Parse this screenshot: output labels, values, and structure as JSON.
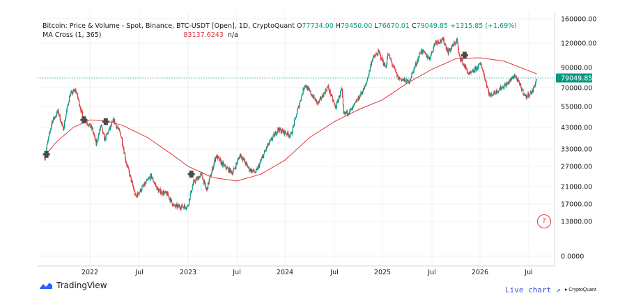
{
  "legend": {
    "title": "Bitcoin: Price & Volume - Spot, Binance, BTC-USDT [Open], 1D, CryptoQuant",
    "o_label": "O",
    "o_value": "77734.00",
    "h_label": "H",
    "h_value": "79450.00",
    "l_label": "L",
    "l_value": "76670.01",
    "c_label": "C",
    "c_value": "79049.85",
    "change": "+1315.85 (+1.69%)",
    "ma_name": "MA Cross (1, 365)",
    "ma_value": "83137.6243",
    "ma_extra": "n/a"
  },
  "branding": {
    "tradingview": "TradingView",
    "live_chart": "Live chart ↗",
    "cryptoquant": "CryptoQuant",
    "help": "?"
  },
  "colors": {
    "up": "#089981",
    "down": "#e0353b",
    "ma": "#e0353b",
    "last_price_bg": "#089981",
    "grid": "#eef0f3"
  },
  "chart_data": {
    "type": "line",
    "y_scale": "log",
    "y_ticks": [
      "160000.00",
      "120000.00",
      "90000.00",
      "70000.00",
      "55000.00",
      "43000.00",
      "33000.00",
      "27000.00",
      "21000.00",
      "17000.00",
      "13800.00",
      "0.0000"
    ],
    "x_ticks": [
      "2022",
      "Jul",
      "2023",
      "Jul",
      "2024",
      "Jul",
      "2025",
      "Jul",
      "2026",
      "Jul"
    ],
    "last_price": "79049.85",
    "series": [
      {
        "name": "Bitcoin: Price & Volume - Spot, Binance, BTC-USDT [Open]",
        "values": [
          [
            "2021-07-20",
            30000
          ],
          [
            "2021-08-15",
            46000
          ],
          [
            "2021-09-07",
            52000
          ],
          [
            "2021-09-25",
            42000
          ],
          [
            "2021-10-20",
            64000
          ],
          [
            "2021-11-10",
            68000
          ],
          [
            "2021-12-05",
            49000
          ],
          [
            "2022-01-10",
            42000
          ],
          [
            "2022-01-24",
            35000
          ],
          [
            "2022-02-10",
            44000
          ],
          [
            "2022-02-24",
            37000
          ],
          [
            "2022-03-29",
            47000
          ],
          [
            "2022-04-25",
            39000
          ],
          [
            "2022-05-12",
            29000
          ],
          [
            "2022-06-18",
            18500
          ],
          [
            "2022-07-10",
            20500
          ],
          [
            "2022-08-14",
            24000
          ],
          [
            "2022-09-10",
            20000
          ],
          [
            "2022-10-15",
            19100
          ],
          [
            "2022-11-09",
            16500
          ],
          [
            "2022-12-30",
            16500
          ],
          [
            "2023-01-20",
            22000
          ],
          [
            "2023-02-20",
            24500
          ],
          [
            "2023-03-10",
            20000
          ],
          [
            "2023-04-14",
            30500
          ],
          [
            "2023-05-15",
            27000
          ],
          [
            "2023-06-15",
            25000
          ],
          [
            "2023-07-14",
            31000
          ],
          [
            "2023-08-18",
            26000
          ],
          [
            "2023-09-11",
            25000
          ],
          [
            "2023-10-25",
            34000
          ],
          [
            "2023-12-05",
            42000
          ],
          [
            "2024-01-23",
            39000
          ],
          [
            "2024-03-14",
            73000
          ],
          [
            "2024-05-01",
            57000
          ],
          [
            "2024-06-07",
            71000
          ],
          [
            "2024-07-05",
            54000
          ],
          [
            "2024-07-29",
            69000
          ],
          [
            "2024-08-05",
            50000
          ],
          [
            "2024-09-06",
            53000
          ],
          [
            "2024-10-29",
            72000
          ],
          [
            "2024-11-22",
            99000
          ],
          [
            "2024-12-17",
            108000
          ],
          [
            "2025-01-13",
            90000
          ],
          [
            "2025-01-21",
            106000
          ],
          [
            "2025-02-27",
            79000
          ],
          [
            "2025-04-07",
            75000
          ],
          [
            "2025-05-22",
            110000
          ],
          [
            "2025-06-22",
            100000
          ],
          [
            "2025-07-14",
            122000
          ],
          [
            "2025-08-14",
            124000
          ],
          [
            "2025-09-01",
            108000
          ],
          [
            "2025-10-06",
            125000
          ],
          [
            "2025-10-11",
            105000
          ],
          [
            "2025-11-21",
            82000
          ],
          [
            "2026-01-05",
            94000
          ],
          [
            "2026-02-06",
            63000
          ],
          [
            "2026-04-14",
            74000
          ],
          [
            "2026-05-10",
            82000
          ],
          [
            "2026-06-20",
            62000
          ],
          [
            "2026-07-15",
            67000
          ],
          [
            "2026-07-31",
            79049.85
          ]
        ]
      },
      {
        "name": "MA Cross (1, 365)",
        "values": [
          [
            "2021-07-20",
            30500
          ],
          [
            "2021-09-01",
            36000
          ],
          [
            "2021-11-01",
            43000
          ],
          [
            "2022-01-01",
            47000
          ],
          [
            "2022-03-01",
            46500
          ],
          [
            "2022-05-01",
            44000
          ],
          [
            "2022-08-01",
            38000
          ],
          [
            "2022-11-01",
            31000
          ],
          [
            "2023-01-01",
            27000
          ],
          [
            "2023-04-01",
            23500
          ],
          [
            "2023-07-01",
            22500
          ],
          [
            "2023-10-01",
            24500
          ],
          [
            "2024-01-01",
            29000
          ],
          [
            "2024-04-01",
            38000
          ],
          [
            "2024-07-01",
            46000
          ],
          [
            "2024-10-01",
            53000
          ],
          [
            "2025-01-01",
            60000
          ],
          [
            "2025-04-01",
            74000
          ],
          [
            "2025-07-01",
            88000
          ],
          [
            "2025-10-01",
            100000
          ],
          [
            "2026-01-01",
            101000
          ],
          [
            "2026-04-01",
            97000
          ],
          [
            "2026-07-31",
            83137.6243
          ]
        ]
      }
    ],
    "cross_markers": [
      [
        "2021-07-26",
        31000
      ],
      [
        "2021-12-10",
        47000
      ],
      [
        "2022-02-28",
        46000
      ],
      [
        "2023-01-13",
        24500
      ],
      [
        "2025-11-03",
        104000
      ]
    ]
  }
}
